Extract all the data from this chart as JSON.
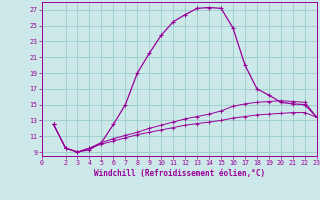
{
  "xlabel": "Windchill (Refroidissement éolien,°C)",
  "background_color": "#cce8e8",
  "grid_color": "#99cccc",
  "line_color": "#990099",
  "xlim": [
    0,
    23
  ],
  "ylim": [
    8.5,
    28
  ],
  "yticks": [
    9,
    11,
    13,
    15,
    17,
    19,
    21,
    23,
    25,
    27
  ],
  "xticks": [
    0,
    2,
    3,
    4,
    5,
    6,
    7,
    8,
    9,
    10,
    11,
    12,
    13,
    14,
    15,
    16,
    17,
    18,
    19,
    20,
    21,
    22,
    23
  ],
  "curve1_x": [
    1,
    2,
    3,
    4,
    5,
    6,
    7,
    8,
    9,
    10,
    11,
    12,
    13,
    14,
    15,
    16,
    17,
    18,
    19,
    20,
    21,
    22,
    23
  ],
  "curve1_y": [
    12.5,
    9.5,
    9.0,
    9.3,
    10.2,
    12.5,
    15.0,
    19.0,
    21.5,
    23.8,
    25.5,
    26.4,
    27.2,
    27.3,
    27.2,
    24.7,
    20.0,
    17.0,
    16.2,
    15.3,
    15.1,
    15.0,
    13.4
  ],
  "curve2_x": [
    1,
    2,
    3,
    4,
    5,
    6,
    7,
    8,
    9,
    10,
    11,
    12,
    13,
    14,
    15,
    16,
    17,
    18,
    19,
    20,
    21,
    22,
    23
  ],
  "curve2_y": [
    12.5,
    9.5,
    9.0,
    9.5,
    10.2,
    10.7,
    11.1,
    11.5,
    12.0,
    12.4,
    12.8,
    13.2,
    13.5,
    13.8,
    14.2,
    14.8,
    15.1,
    15.3,
    15.4,
    15.5,
    15.4,
    15.3,
    13.4
  ],
  "curve3_x": [
    1,
    2,
    3,
    4,
    5,
    6,
    7,
    8,
    9,
    10,
    11,
    12,
    13,
    14,
    15,
    16,
    17,
    18,
    19,
    20,
    21,
    22,
    23
  ],
  "curve3_y": [
    12.5,
    9.5,
    9.0,
    9.5,
    10.0,
    10.4,
    10.8,
    11.2,
    11.5,
    11.8,
    12.1,
    12.4,
    12.6,
    12.8,
    13.0,
    13.3,
    13.5,
    13.7,
    13.8,
    13.9,
    14.0,
    14.0,
    13.4
  ]
}
